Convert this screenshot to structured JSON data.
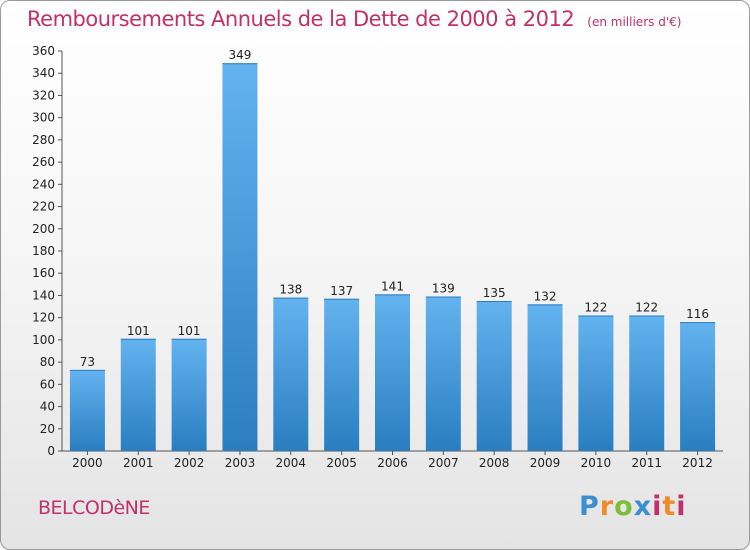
{
  "header": {
    "title": "Remboursements Annuels de la Dette de 2000 à 2012",
    "unit": "(en milliers d'€)"
  },
  "footer": {
    "commune": "BELCODèNE",
    "logo": "Proxiti"
  },
  "colors": {
    "title": "#c0306a",
    "bar_top": "#63b3ef",
    "bar_bottom": "#2a7ec0"
  },
  "chart_data": {
    "type": "bar",
    "title": "Remboursements Annuels de la Dette de 2000 à 2012",
    "xlabel": "",
    "ylabel": "",
    "categories": [
      "2000",
      "2001",
      "2002",
      "2003",
      "2004",
      "2005",
      "2006",
      "2007",
      "2008",
      "2009",
      "2010",
      "2011",
      "2012"
    ],
    "values": [
      73,
      101,
      101,
      349,
      138,
      137,
      141,
      139,
      135,
      132,
      122,
      122,
      116
    ],
    "ylim": [
      0,
      360
    ],
    "yticks": [
      0,
      20,
      40,
      60,
      80,
      100,
      120,
      140,
      160,
      180,
      200,
      220,
      240,
      260,
      280,
      300,
      320,
      340,
      360
    ],
    "grid": false,
    "legend": "none"
  }
}
